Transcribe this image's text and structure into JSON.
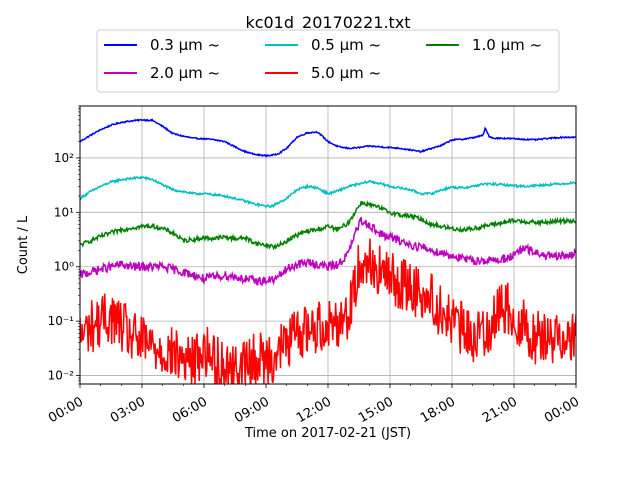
{
  "chart_data": {
    "type": "line",
    "title": "kc01d_20170221.txt",
    "xlabel": "Time on 2017-02-21 (JST)",
    "ylabel": "Count / L",
    "yscale": "log",
    "ylim": [
      0.007,
      900
    ],
    "xlim_hours": [
      0,
      24
    ],
    "grid": true,
    "x_tick_hours": [
      0,
      3,
      6,
      9,
      12,
      15,
      18,
      21,
      24
    ],
    "x_tick_labels": [
      "00:00",
      "03:00",
      "06:00",
      "09:00",
      "12:00",
      "15:00",
      "18:00",
      "21:00",
      "00:00"
    ],
    "y_tick_values": [
      0.01,
      0.1,
      1,
      10,
      100
    ],
    "y_tick_labels": [
      "10⁻²",
      "10⁻¹",
      "10⁰",
      "10¹",
      "10²"
    ],
    "legend_position": "top",
    "series": [
      {
        "name": "0.3 μm ~",
        "color": "#0000ff",
        "x": [
          0,
          0.5,
          1,
          1.5,
          2,
          2.5,
          3,
          3.5,
          4,
          4.5,
          5,
          5.5,
          6,
          6.5,
          7,
          7.5,
          8,
          8.5,
          9,
          9.3,
          9.6,
          10,
          10.5,
          11,
          11.5,
          12,
          12.5,
          13,
          13.5,
          14,
          14.5,
          15,
          15.5,
          16,
          16.5,
          17,
          17.5,
          18,
          18.5,
          19,
          19.5,
          19.6,
          19.8,
          20,
          20.5,
          21,
          21.5,
          22,
          22.5,
          23,
          23.5,
          24
        ],
        "y": [
          200,
          260,
          330,
          400,
          450,
          480,
          500,
          490,
          380,
          280,
          250,
          230,
          225,
          215,
          200,
          160,
          130,
          115,
          110,
          112,
          120,
          150,
          240,
          290,
          300,
          200,
          160,
          150,
          155,
          165,
          160,
          155,
          150,
          140,
          130,
          150,
          170,
          215,
          220,
          235,
          260,
          350,
          250,
          230,
          230,
          225,
          220,
          215,
          225,
          235,
          240,
          240
        ]
      },
      {
        "name": "0.5 μm ~",
        "color": "#00bfbf",
        "x": [
          0,
          0.5,
          1,
          1.5,
          2,
          2.5,
          3,
          3.5,
          4,
          4.5,
          5,
          5.5,
          6,
          6.5,
          7,
          7.5,
          8,
          8.5,
          9,
          9.3,
          9.6,
          10,
          10.5,
          11,
          11.5,
          12,
          12.5,
          13,
          13.5,
          14,
          14.5,
          15,
          15.5,
          16,
          16.5,
          17,
          17.5,
          18,
          18.5,
          19,
          19.5,
          20,
          20.5,
          21,
          21.5,
          22,
          22.5,
          23,
          23.5,
          24
        ],
        "y": [
          18,
          24,
          30,
          36,
          40,
          42,
          44,
          40,
          32,
          26,
          24,
          22,
          22,
          21,
          20,
          18,
          16,
          14,
          13,
          13,
          15,
          18,
          26,
          30,
          28,
          22,
          25,
          30,
          33,
          37,
          34,
          30,
          28,
          26,
          22,
          22,
          26,
          29,
          28,
          30,
          33,
          33,
          32,
          31,
          30,
          31,
          32,
          33,
          34,
          35
        ]
      },
      {
        "name": "1.0 μm ~",
        "color": "#008000",
        "x": [
          0,
          0.5,
          1,
          1.5,
          2,
          2.5,
          3,
          3.5,
          4,
          4.5,
          5,
          5.5,
          6,
          6.5,
          7,
          7.5,
          8,
          8.5,
          9,
          9.5,
          10,
          10.5,
          11,
          11.5,
          12,
          12.5,
          13,
          13.3,
          13.6,
          14,
          14.5,
          15,
          15.5,
          16,
          16.5,
          17,
          17.5,
          18,
          18.5,
          19,
          19.5,
          20,
          20.5,
          21,
          21.5,
          22,
          22.5,
          23,
          23.5,
          24
        ],
        "y": [
          2.5,
          3,
          3.6,
          4.2,
          4.8,
          5.2,
          5.5,
          5.6,
          5.0,
          4.2,
          3.0,
          3.2,
          3.4,
          3.3,
          3.5,
          3.3,
          3.4,
          2.7,
          2.5,
          2.3,
          3.0,
          3.8,
          4.5,
          4.8,
          5.5,
          4.8,
          6.5,
          10,
          15,
          14,
          12,
          10,
          9,
          8.5,
          7.5,
          6.0,
          5.5,
          5.0,
          4.8,
          5.0,
          5.5,
          6.0,
          6.5,
          7.0,
          6.8,
          6.5,
          6.5,
          6.8,
          7.0,
          7.0
        ]
      },
      {
        "name": "2.0 μm ~",
        "color": "#bf00bf",
        "x": [
          0,
          0.5,
          1,
          1.5,
          2,
          2.5,
          3,
          3.5,
          4,
          4.5,
          5,
          5.5,
          6,
          6.5,
          7,
          7.5,
          8,
          8.5,
          9,
          9.5,
          10,
          10.5,
          11,
          11.5,
          12,
          12.5,
          13,
          13.3,
          13.6,
          14,
          14.5,
          15,
          15.5,
          16,
          16.5,
          17,
          17.5,
          18,
          18.5,
          19,
          19.5,
          20,
          20.5,
          21,
          21.5,
          22,
          22.5,
          23,
          23.5,
          24
        ],
        "y": [
          0.7,
          0.8,
          0.9,
          1.0,
          1.1,
          1.0,
          1.0,
          1.0,
          1.0,
          0.9,
          0.8,
          0.7,
          0.6,
          0.65,
          0.7,
          0.65,
          0.6,
          0.55,
          0.55,
          0.6,
          0.9,
          1.1,
          1.2,
          1.1,
          1.0,
          1.1,
          1.8,
          4.0,
          7.0,
          6.0,
          4.0,
          3.5,
          3.0,
          2.5,
          2.3,
          2.0,
          1.8,
          1.6,
          1.4,
          1.3,
          1.3,
          1.3,
          1.4,
          1.6,
          2.2,
          1.8,
          1.6,
          1.5,
          1.6,
          1.7
        ]
      },
      {
        "name": "5.0 μm ~",
        "color": "#ff0000",
        "x": [
          0,
          0.5,
          1,
          1.5,
          2,
          2.5,
          3,
          3.5,
          4,
          4.5,
          5,
          5.5,
          6,
          6.5,
          7,
          7.5,
          8,
          8.5,
          9,
          9.5,
          10,
          10.5,
          11,
          11.5,
          12,
          12.5,
          13,
          13.3,
          13.6,
          14,
          14.5,
          15,
          15.5,
          16,
          16.5,
          17,
          17.5,
          18,
          18.5,
          19,
          19.5,
          20,
          20.5,
          21,
          21.5,
          22,
          22.5,
          23,
          23.5,
          24
        ],
        "y": [
          0.05,
          0.08,
          0.1,
          0.12,
          0.08,
          0.05,
          0.04,
          0.035,
          0.03,
          0.025,
          0.02,
          0.018,
          0.03,
          0.02,
          0.015,
          0.012,
          0.015,
          0.02,
          0.02,
          0.025,
          0.04,
          0.06,
          0.07,
          0.08,
          0.09,
          0.1,
          0.15,
          0.4,
          1.5,
          1.2,
          0.8,
          0.6,
          0.5,
          0.4,
          0.35,
          0.25,
          0.15,
          0.1,
          0.07,
          0.05,
          0.06,
          0.1,
          0.2,
          0.12,
          0.08,
          0.05,
          0.05,
          0.05,
          0.06,
          0.05
        ]
      }
    ]
  }
}
